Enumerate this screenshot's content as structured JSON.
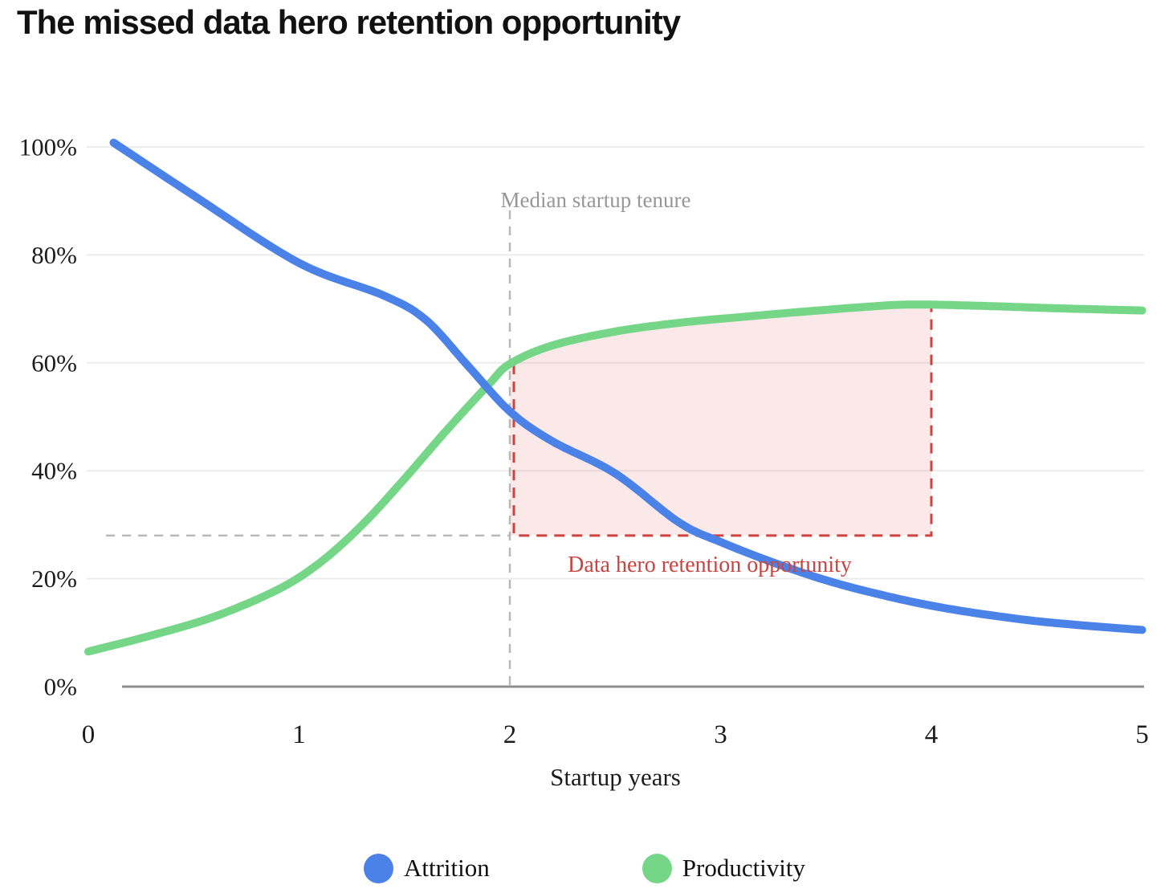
{
  "chart_data": {
    "type": "line",
    "title": "The missed data hero retention opportunity",
    "xlabel": "Startup years",
    "ylabel": "",
    "xlim": [
      0,
      5
    ],
    "ylim": [
      0,
      100
    ],
    "grid": "horizontal-gridlines-only",
    "legend_position": "bottom-center",
    "x_ticks": [
      {
        "value": 0,
        "label": "0"
      },
      {
        "value": 1,
        "label": "1"
      },
      {
        "value": 2,
        "label": "2"
      },
      {
        "value": 3,
        "label": "3"
      },
      {
        "value": 4,
        "label": "4"
      },
      {
        "value": 5,
        "label": "5"
      }
    ],
    "y_ticks": [
      {
        "value": 0,
        "label": "0%"
      },
      {
        "value": 20,
        "label": "20%"
      },
      {
        "value": 40,
        "label": "40%"
      },
      {
        "value": 60,
        "label": "60%"
      },
      {
        "value": 80,
        "label": "80%"
      },
      {
        "value": 100,
        "label": "100%"
      }
    ],
    "series": [
      {
        "name": "Attrition",
        "color": "#4a82e8",
        "x": [
          0.12,
          0.5,
          1.0,
          1.4,
          1.6,
          1.8,
          2.0,
          2.2,
          2.5,
          2.8,
          3.0,
          3.3,
          3.6,
          4.0,
          4.4,
          4.7,
          5.0
        ],
        "y": [
          100.8,
          91,
          78.5,
          72.5,
          68,
          59.5,
          51,
          45.5,
          39.5,
          30.5,
          26.8,
          22.3,
          18.6,
          15,
          12.6,
          11.4,
          10.5
        ]
      },
      {
        "name": "Productivity",
        "color": "#76d688",
        "x": [
          0,
          0.3,
          0.6,
          0.9,
          1.1,
          1.3,
          1.5,
          1.7,
          1.9,
          2.0,
          2.2,
          2.5,
          2.8,
          3.1,
          3.4,
          3.7,
          3.9,
          4.2,
          4.6,
          5.0
        ],
        "y": [
          6.5,
          9.5,
          13,
          18,
          23,
          30,
          38.5,
          47.5,
          56,
          59.8,
          63.2,
          65.8,
          67.4,
          68.5,
          69.5,
          70.4,
          70.8,
          70.6,
          70.1,
          69.7
        ]
      }
    ],
    "annotations": {
      "median_tenure_line": {
        "label": "Median startup tenure",
        "x": 2,
        "style": "dashed-vertical",
        "line_color": "#b8b8b8",
        "label_color": "#979797"
      },
      "baseline_dashed": {
        "y": 28,
        "x_start": 0.05,
        "x_end": 2,
        "style": "dashed-horizontal",
        "line_color": "#b8b8b8"
      },
      "opportunity_region": {
        "label": "Data hero retention opportunity",
        "x_start": 2,
        "x_end": 4,
        "y_bottom": 28,
        "top_bounded_by": "Productivity",
        "border_color": "#cd4340",
        "fill_color": "rgba(214,85,78,0.13)",
        "label_color": "#c64542"
      }
    },
    "axis_colors": {
      "gridline": "#ececec",
      "axis_line": "#8e8e8e",
      "tick_text": "#1c1c1c"
    }
  }
}
